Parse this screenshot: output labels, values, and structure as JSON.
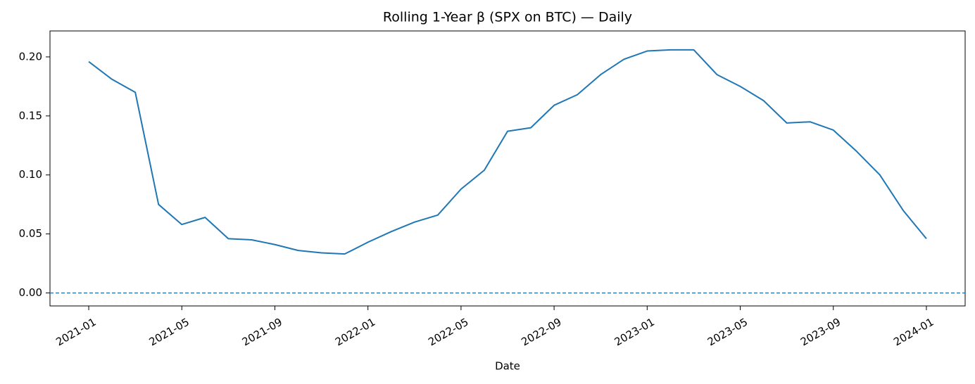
{
  "chart_data": {
    "type": "line",
    "title": "Rolling 1-Year β (SPX on BTC) — Daily",
    "x_label": "Date",
    "x": [
      "2021-01",
      "2021-02",
      "2021-03",
      "2021-04",
      "2021-05",
      "2021-06",
      "2021-07",
      "2021-08",
      "2021-09",
      "2021-10",
      "2021-11",
      "2021-12",
      "2022-01",
      "2022-02",
      "2022-03",
      "2022-04",
      "2022-05",
      "2022-06",
      "2022-07",
      "2022-08",
      "2022-09",
      "2022-10",
      "2022-11",
      "2022-12",
      "2023-01",
      "2023-02",
      "2023-03",
      "2023-04",
      "2023-05",
      "2023-06",
      "2023-07",
      "2023-08",
      "2023-09",
      "2023-10",
      "2023-11",
      "2023-12",
      "2024-01"
    ],
    "series": [
      {
        "name": "β",
        "color": "#1f77b4",
        "values": [
          0.196,
          0.181,
          0.17,
          0.075,
          0.058,
          0.064,
          0.046,
          0.045,
          0.041,
          0.036,
          0.034,
          0.033,
          0.043,
          0.052,
          0.06,
          0.066,
          0.088,
          0.104,
          0.137,
          0.14,
          0.159,
          0.168,
          0.185,
          0.198,
          0.205,
          0.206,
          0.206,
          0.185,
          0.175,
          0.163,
          0.144,
          0.145,
          0.138,
          0.12,
          0.1,
          0.07,
          0.046
        ]
      }
    ],
    "reference_line": 0,
    "xlim": [
      "2020-12",
      "2024-02"
    ],
    "xticks": [
      "2021-01",
      "2021-05",
      "2021-09",
      "2022-01",
      "2022-05",
      "2022-09",
      "2023-01",
      "2023-05",
      "2023-09",
      "2024-01"
    ],
    "ylim": [
      -0.011,
      0.222
    ],
    "yticks": [
      {
        "value": 0,
        "label": "0.00"
      },
      {
        "value": 0.05,
        "label": "0.05"
      },
      {
        "value": 0.1,
        "label": "0.10"
      },
      {
        "value": 0.15,
        "label": "0.15"
      },
      {
        "value": 0.2,
        "label": "0.20"
      }
    ],
    "grid": false
  }
}
